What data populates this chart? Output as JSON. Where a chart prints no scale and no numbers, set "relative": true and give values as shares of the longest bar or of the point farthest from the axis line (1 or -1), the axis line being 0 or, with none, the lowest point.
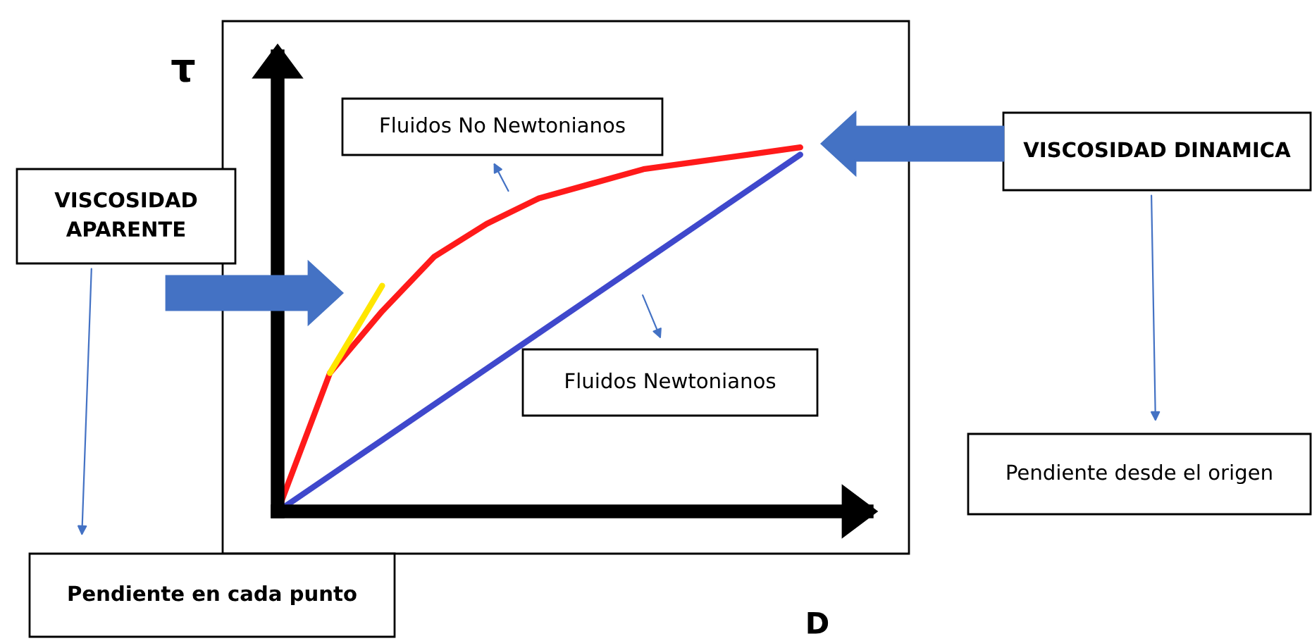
{
  "chart_data": {
    "type": "line",
    "relative": true,
    "xlabel": "D",
    "ylabel": "τ",
    "categories": [
      null,
      null,
      null,
      null,
      null,
      null,
      null,
      null,
      null,
      null,
      null
    ],
    "series": [
      {
        "color": "#ff1a1a",
        "values": [
          0,
          0.38,
          0.55,
          0.7,
          0.79,
          0.86,
          0.9,
          0.94,
          0.96,
          0.98,
          1
        ]
      },
      {
        "color": "#3f48cc",
        "values": [
          0,
          0.098,
          0.196,
          0.294,
          0.392,
          0.49,
          0.588,
          0.686,
          0.784,
          0.882,
          0.98
        ]
      },
      {
        "color": "#ffe600",
        "values": [
          null,
          0.38,
          0.62,
          null,
          null,
          null,
          null,
          null,
          null,
          null,
          null
        ]
      }
    ],
    "annotations": [
      "Fluidos No Newtonianos",
      "Fluidos Newtonianos",
      "VISCOSIDAD\nAPARENTE",
      "Pendiente en cada punto",
      "VISCOSIDAD DINAMICA",
      "Pendiente desde el origen"
    ],
    "grid": false,
    "legend": false
  }
}
